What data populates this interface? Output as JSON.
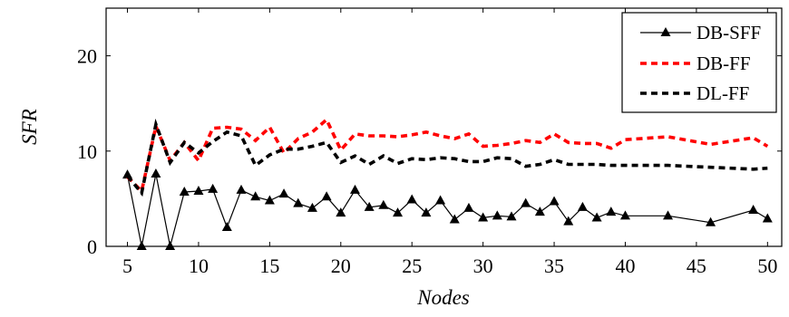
{
  "chart_data": {
    "type": "line",
    "xlabel": "Nodes",
    "ylabel": "SFR",
    "xlim": [
      3.5,
      51
    ],
    "ylim": [
      0,
      25
    ],
    "xticks": [
      5,
      10,
      15,
      20,
      25,
      30,
      35,
      40,
      45,
      50
    ],
    "yticks": [
      0,
      10,
      20
    ],
    "xtick_labels": [
      "5",
      "10",
      "15",
      "20",
      "25",
      "30",
      "35",
      "40",
      "45",
      "50"
    ],
    "ytick_labels": [
      "0",
      "10",
      "20"
    ],
    "grid": false,
    "legend_position": "top-right",
    "series": [
      {
        "name": "DB-SFF",
        "style": "solid-triangle",
        "color": "#000000",
        "x": [
          5,
          6,
          7,
          8,
          9,
          10,
          11,
          12,
          13,
          14,
          15,
          16,
          17,
          18,
          19,
          20,
          21,
          22,
          23,
          24,
          25,
          26,
          27,
          28,
          29,
          30,
          31,
          32,
          33,
          34,
          35,
          36,
          37,
          38,
          39,
          40,
          43,
          46,
          49,
          50
        ],
        "y": [
          7.5,
          0,
          7.6,
          0,
          5.7,
          5.8,
          6.0,
          2.0,
          5.9,
          5.2,
          4.8,
          5.5,
          4.5,
          4.0,
          5.2,
          3.5,
          5.9,
          4.1,
          4.3,
          3.5,
          4.9,
          3.5,
          4.8,
          2.8,
          4.0,
          3.0,
          3.2,
          3.1,
          4.5,
          3.6,
          4.7,
          2.6,
          4.1,
          3.0,
          3.6,
          3.2,
          3.2,
          2.5,
          3.8,
          2.9
        ]
      },
      {
        "name": "DB-FF",
        "style": "dashed",
        "color": "#ff0000",
        "x": [
          5,
          6,
          7,
          8,
          9,
          10,
          11,
          12,
          13,
          14,
          15,
          16,
          17,
          18,
          19,
          20,
          21,
          22,
          23,
          24,
          25,
          26,
          27,
          28,
          29,
          30,
          31,
          32,
          33,
          34,
          35,
          36,
          37,
          38,
          39,
          40,
          43,
          46,
          49,
          50
        ],
        "y": [
          7.3,
          5.8,
          12.6,
          9.0,
          10.9,
          9.0,
          12.4,
          12.5,
          12.3,
          11.1,
          12.5,
          9.8,
          11.3,
          12.0,
          13.3,
          10.1,
          11.8,
          11.6,
          11.6,
          11.5,
          11.7,
          12.0,
          11.6,
          11.3,
          11.8,
          10.5,
          10.6,
          10.8,
          11.1,
          10.9,
          11.8,
          10.9,
          10.8,
          10.8,
          10.3,
          11.2,
          11.5,
          10.7,
          11.4,
          10.5
        ]
      },
      {
        "name": "DL-FF",
        "style": "dashed",
        "color": "#000000",
        "x": [
          5,
          6,
          7,
          8,
          9,
          10,
          11,
          12,
          13,
          14,
          15,
          16,
          17,
          18,
          19,
          20,
          21,
          22,
          23,
          24,
          25,
          26,
          27,
          28,
          29,
          30,
          31,
          32,
          33,
          34,
          35,
          36,
          37,
          38,
          39,
          40,
          43,
          46,
          49,
          50
        ],
        "y": [
          7.4,
          5.6,
          12.8,
          8.8,
          10.9,
          9.8,
          11.0,
          12.0,
          11.6,
          8.5,
          9.6,
          10.2,
          10.2,
          10.5,
          10.9,
          8.8,
          9.5,
          8.6,
          9.5,
          8.7,
          9.2,
          9.1,
          9.3,
          9.2,
          8.9,
          8.9,
          9.3,
          9.2,
          8.4,
          8.6,
          9.1,
          8.6,
          8.6,
          8.6,
          8.5,
          8.5,
          8.5,
          8.3,
          8.1,
          8.2
        ]
      }
    ]
  }
}
